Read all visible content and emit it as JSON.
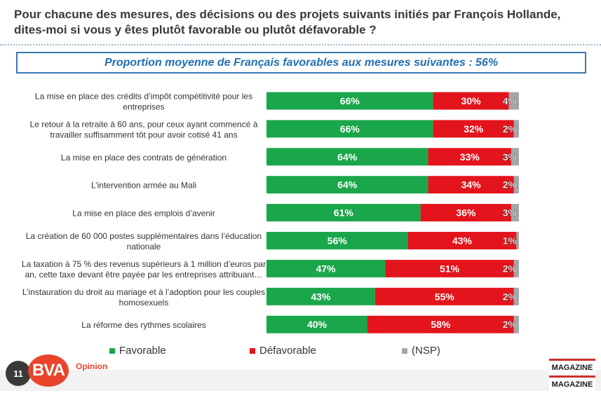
{
  "question": "Pour chacune des mesures, des décisions ou des projets suivants initiés par François Hollande, dites-moi si vous y êtes plutôt favorable ou plutôt défavorable ?",
  "average": "Proportion moyenne de Français favorables aux mesures suivantes : 56%",
  "chart_data": {
    "type": "bar",
    "orientation": "horizontal",
    "stacked": true,
    "categories": [
      [
        "La mise en place des crédits d’impôt compétitivité pour les",
        "entreprises"
      ],
      [
        "Le retour à la retraite à 60 ans, pour ceux ayant commencé à",
        "travailler suffisamment tôt pour avoir cotisé 41 ans"
      ],
      [
        "La mise en place des contrats de génération"
      ],
      [
        "L’intervention armée au Mali"
      ],
      [
        "La mise en place des emplois d’avenir"
      ],
      [
        "La création de 60 000 postes supplémentaires dans l’éducation",
        "nationale"
      ],
      [
        "La taxation à 75 % des revenus supérieurs à 1 million d’euros par",
        "an, cette taxe devant être payée par les entreprises attribuant…"
      ],
      [
        "L’instauration du droit au mariage et à l’adoption pour les couples",
        "homosexuels"
      ],
      [
        "La réforme des rythmes scolaires"
      ]
    ],
    "series": [
      {
        "name": "Favorable",
        "color": "#1aa64a",
        "values": [
          66,
          66,
          64,
          64,
          61,
          56,
          47,
          43,
          40
        ],
        "labels": [
          "66%",
          "66%",
          "64%",
          "64%",
          "61%",
          "56%",
          "47%",
          "43%",
          "40%"
        ]
      },
      {
        "name": "Défavorable",
        "color": "#e3141c",
        "values": [
          30,
          32,
          33,
          34,
          36,
          43,
          51,
          55,
          58
        ],
        "labels": [
          "30%",
          "32%",
          "33%",
          "34%",
          "36%",
          "43%",
          "51%",
          "55%",
          "58%"
        ]
      },
      {
        "name": "(NSP)",
        "color": "#a6a6a6",
        "values": [
          4,
          2,
          3,
          2,
          3,
          1,
          2,
          2,
          2
        ],
        "labels": [
          "4%",
          "2%",
          "3%",
          "2%",
          "3%",
          "1%",
          "2%",
          "2%",
          "2%"
        ]
      }
    ],
    "xlim": [
      0,
      100
    ],
    "legend": "bottom"
  },
  "footer": {
    "page": "11",
    "logo": "BVA",
    "tagline": "Opinion",
    "magazine_top": "MAGAZINE",
    "magazine_bottom": "MAGAZINE"
  }
}
